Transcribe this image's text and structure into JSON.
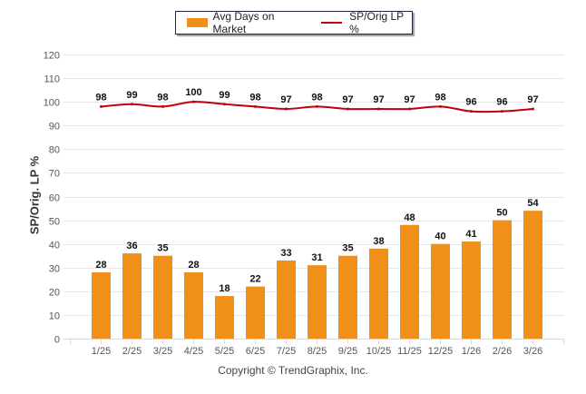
{
  "chart_data": {
    "type": "bar",
    "title": "",
    "xlabel": "",
    "ylabel": "SP/Orig. LP %",
    "ylim": [
      0,
      120
    ],
    "yticks": [
      0,
      10,
      20,
      30,
      40,
      50,
      60,
      70,
      80,
      90,
      100,
      110,
      120
    ],
    "grid": true,
    "legend_position": "top-center",
    "categories": [
      "1/25",
      "2/25",
      "3/25",
      "4/25",
      "5/25",
      "6/25",
      "7/25",
      "8/25",
      "9/25",
      "10/25",
      "11/25",
      "12/25",
      "1/26",
      "2/26",
      "3/26"
    ],
    "series": [
      {
        "name": "Avg Days on Market",
        "type": "bar",
        "color": "#f0901a",
        "values": [
          28,
          36,
          35,
          28,
          18,
          22,
          33,
          31,
          35,
          38,
          48,
          40,
          41,
          50,
          54
        ]
      },
      {
        "name": "SP/Orig LP %",
        "type": "line",
        "color": "#c0000c",
        "values": [
          98,
          99,
          98,
          100,
          99,
          98,
          97,
          98,
          97,
          97,
          97,
          98,
          96,
          96,
          97
        ]
      }
    ]
  },
  "legend": {
    "bar_label": "Avg Days on Market",
    "line_label": "SP/Orig LP %"
  },
  "footer": "Copyright © TrendGraphix, Inc."
}
